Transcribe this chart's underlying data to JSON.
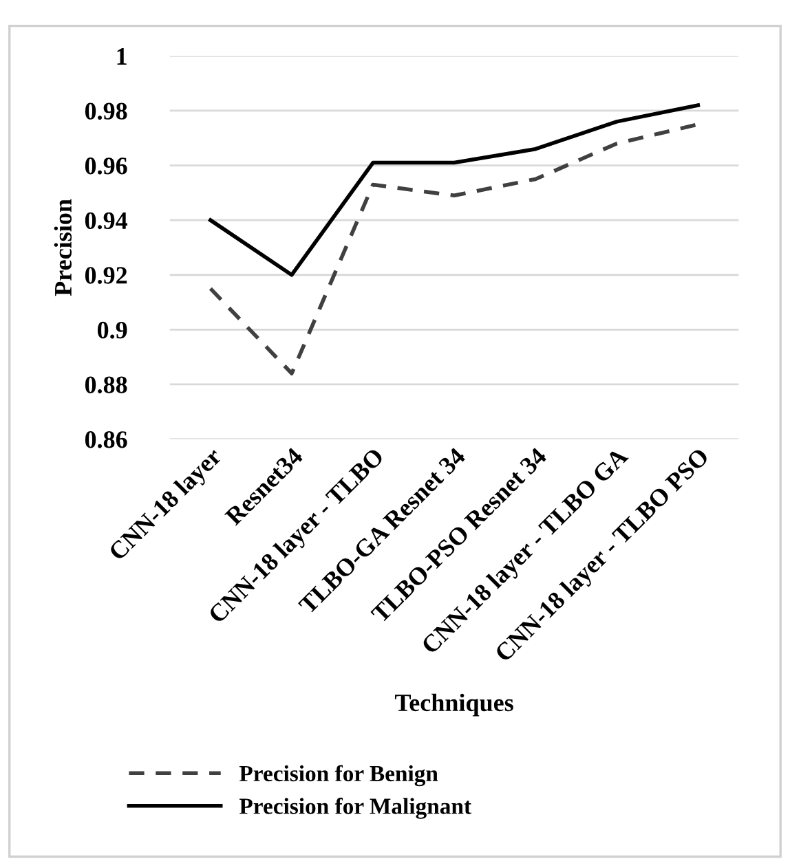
{
  "chart_data": {
    "type": "line",
    "xlabel": "Techniques",
    "ylabel": "Precision",
    "categories": [
      "CNN-18 layer",
      "Resnet34",
      "CNN-18 layer - TLBO",
      "TLBO-GA Resnet 34",
      "TLBO-PSO Resnet 34",
      "CNN-18 layer - TLBO GA",
      "CNN-18 layer - TLBO PSO"
    ],
    "series": [
      {
        "name": "Precision for Benign",
        "color": "#404040",
        "line_style": "dashed",
        "values": [
          0.915,
          0.884,
          0.953,
          0.949,
          0.955,
          0.968,
          0.975
        ]
      },
      {
        "name": "Precision for Malignant",
        "color": "#000000",
        "line_style": "solid",
        "values": [
          0.94,
          0.92,
          0.961,
          0.961,
          0.966,
          0.976,
          0.982
        ]
      }
    ],
    "ylim": [
      0.86,
      1
    ],
    "yticks": [
      0.86,
      0.88,
      0.9,
      0.92,
      0.94,
      0.96,
      0.98,
      1
    ],
    "grid": "y",
    "legend": "bottom",
    "marker": "none"
  }
}
